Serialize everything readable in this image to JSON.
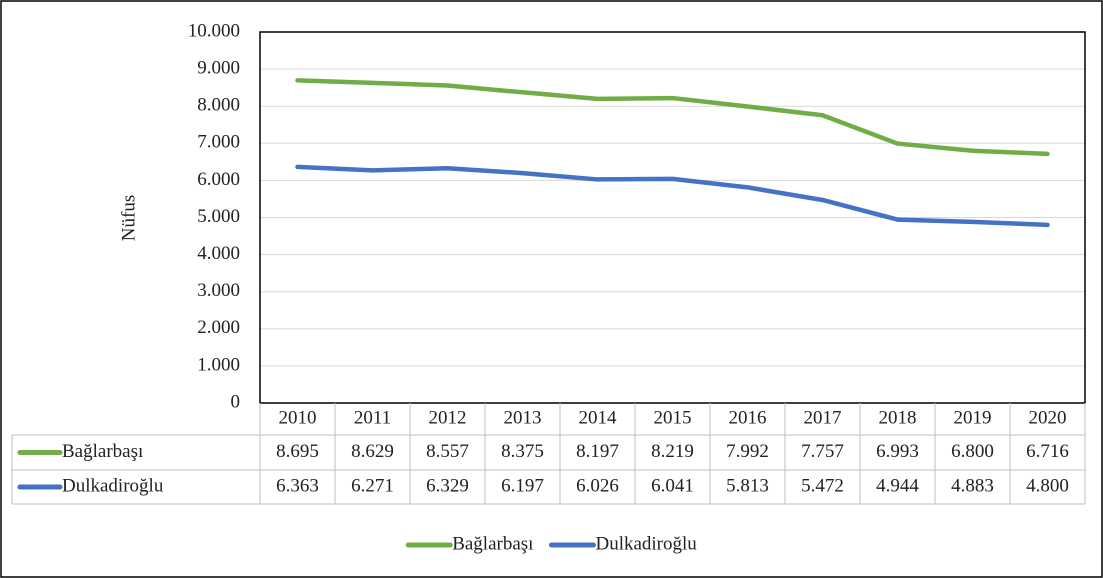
{
  "chart_data": {
    "type": "line",
    "ylabel": "Nüfus",
    "categories": [
      "2010",
      "2011",
      "2012",
      "2013",
      "2014",
      "2015",
      "2016",
      "2017",
      "2018",
      "2019",
      "2020"
    ],
    "series": [
      {
        "name": "Bağlarbaşı",
        "color": "#70ad47",
        "values": [
          8695,
          8629,
          8557,
          8375,
          8197,
          8219,
          7992,
          7757,
          6993,
          6800,
          6716
        ],
        "value_labels": [
          "8.695",
          "8.629",
          "8.557",
          "8.375",
          "8.197",
          "8.219",
          "7.992",
          "7.757",
          "6.993",
          "6.800",
          "6.716"
        ]
      },
      {
        "name": "Dulkadiroğlu",
        "color": "#4472c4",
        "values": [
          6363,
          6271,
          6329,
          6197,
          6026,
          6041,
          5813,
          5472,
          4944,
          4883,
          4800
        ],
        "value_labels": [
          "6.363",
          "6.271",
          "6.329",
          "6.197",
          "6.026",
          "6.041",
          "5.813",
          "5.472",
          "4.944",
          "4.883",
          "4.800"
        ]
      }
    ],
    "ylim": [
      0,
      10000
    ],
    "yticks": [
      0,
      {
        "value": 1000,
        "label": "1.000"
      },
      {
        "value": 2000,
        "label": "2.000"
      },
      {
        "value": 3000,
        "label": "3.000"
      },
      {
        "value": 4000,
        "label": "4.000"
      },
      {
        "value": 5000,
        "label": "5.000"
      },
      {
        "value": 6000,
        "label": "6.000"
      },
      {
        "value": 7000,
        "label": "7.000"
      },
      {
        "value": 8000,
        "label": "8.000"
      },
      {
        "value": 9000,
        "label": "9.000"
      },
      {
        "value": 10000,
        "label": "10.000"
      }
    ],
    "grid": true,
    "legend": "bottom"
  }
}
